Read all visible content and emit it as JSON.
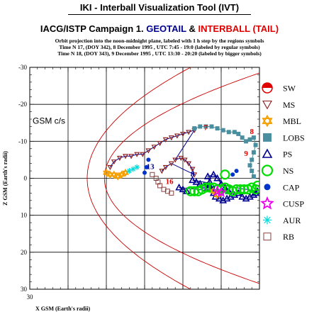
{
  "header": {
    "title": "IKI - Interball Visualization Tool (IVT)",
    "campaign_prefix": "IACG/ISTP Campaign 1.",
    "campaign_sc1": "GEOTAIL",
    "campaign_amp": "&",
    "campaign_sc2": "INTERBALL (TAIL)",
    "info_line1": "Orbit projection into the noon-midnight plane, labeled with 1 h step by the regions symbols",
    "info_line2": "Time N 17, (DOY 342), 8 December 1995 ,  UTC 7:45 - 19:0 (labeled by regular symbols)",
    "info_line3": "Time N 18, (DOY 343), 9 December 1995 ,  UTC 13:30 - 20:20 (labeled by bigger symbols)"
  },
  "colors": {
    "geotail": "#000090",
    "interball": "#e00000",
    "boundary": "#cc0000",
    "grid": "#000000",
    "lobs": "#4a8fa0",
    "ms": "#8b1a1a",
    "mbl": "#f5a000",
    "ns": "#00dd00",
    "cap": "#0033cc",
    "cusp": "#ee00ee",
    "aur": "#00dddd",
    "rb": "#8b4040",
    "sw": "#e00000"
  },
  "chart_data": {
    "type": "scatter",
    "frame_label": "GSM c/s",
    "xlabel": "X GSM (Earth's radii)",
    "ylabel": "Z GSM (Earth's radii)",
    "xlim": [
      30,
      -30
    ],
    "ylim": [
      -30,
      30
    ],
    "x_ticks": [
      "30",
      "20",
      "10",
      "0",
      "-10",
      "-20",
      "-30"
    ],
    "y_ticks": [
      "-30",
      "-20",
      "-10",
      "0",
      "10",
      "20",
      "30"
    ],
    "grid": true,
    "legend_position": "right",
    "legend": [
      {
        "key": "sw",
        "label": "SW"
      },
      {
        "key": "ms",
        "label": "MS"
      },
      {
        "key": "mbl",
        "label": "MBL"
      },
      {
        "key": "lobs",
        "label": "LOBS"
      },
      {
        "key": "ps",
        "label": "PS"
      },
      {
        "key": "ns",
        "label": "NS"
      },
      {
        "key": "cap",
        "label": "CAP"
      },
      {
        "key": "cusp",
        "label": "CUSP"
      },
      {
        "key": "aur",
        "label": "AUR"
      },
      {
        "key": "rb",
        "label": "RB"
      }
    ],
    "hour_labels": [
      {
        "text": "7",
        "x": -16,
        "z": -13,
        "color": "#e00000"
      },
      {
        "text": "8",
        "x": -28,
        "z": -12,
        "color": "#e00000"
      },
      {
        "text": "9",
        "x": -26.5,
        "z": -6,
        "color": "#e00000"
      },
      {
        "text": "13",
        "x": -1.5,
        "z": -2.5,
        "color": "#000090"
      },
      {
        "text": "16",
        "x": -6.5,
        "z": 1.5,
        "color": "#e00000"
      },
      {
        "text": "8",
        "x": -12.5,
        "z": -0.5,
        "color": "#000090"
      },
      {
        "text": "7",
        "x": -18,
        "z": 3.5,
        "color": "#000090"
      }
    ],
    "series": [
      {
        "name": "MS",
        "region": "ms",
        "points": [
          [
            9,
            -3
          ],
          [
            8,
            -4.5
          ],
          [
            6.5,
            -5.5
          ],
          [
            5,
            -6
          ],
          [
            3.5,
            -6
          ],
          [
            2,
            -6.5
          ],
          [
            0.5,
            -6.5
          ],
          [
            -1,
            -7.5
          ],
          [
            -2.5,
            -8.5
          ],
          [
            -4,
            -9.5
          ],
          [
            -5.5,
            -10.5
          ],
          [
            -7,
            -11
          ],
          [
            -8.5,
            -11.5
          ],
          [
            -10,
            -12
          ],
          [
            -11.5,
            -12.5
          ],
          [
            -13,
            -13
          ],
          [
            -8,
            -5
          ],
          [
            -9.5,
            -5.5
          ],
          [
            -10.5,
            -5
          ],
          [
            -11.5,
            -4
          ],
          [
            -12.5,
            -2.5
          ],
          [
            -13,
            -1
          ],
          [
            -7,
            -4
          ],
          [
            -5.5,
            -3
          ],
          [
            -4.5,
            -2
          ]
        ]
      },
      {
        "name": "LOBS",
        "region": "lobs",
        "points": [
          [
            -13,
            -13.5
          ],
          [
            -14.5,
            -14
          ],
          [
            -16,
            -14
          ],
          [
            -17.5,
            -14
          ],
          [
            -19,
            -13.5
          ],
          [
            -20.5,
            -13
          ],
          [
            -22,
            -12.5
          ],
          [
            -23.5,
            -12.5
          ],
          [
            -24.5,
            -12
          ],
          [
            -25.5,
            -11
          ],
          [
            -26.5,
            -10
          ],
          [
            -27.5,
            -10.5
          ],
          [
            -28.5,
            -11
          ],
          [
            -29,
            -9
          ],
          [
            -28.5,
            -7
          ],
          [
            -28,
            -5
          ],
          [
            -27.5,
            -3.5
          ],
          [
            -28,
            -2
          ],
          [
            -28.5,
            -0.5
          ]
        ]
      },
      {
        "name": "PS",
        "region": "ps",
        "points": [
          [
            -17,
            2
          ],
          [
            -17.5,
            3
          ],
          [
            -18,
            4
          ],
          [
            -18.5,
            5
          ],
          [
            -19.5,
            5.5
          ],
          [
            -20.5,
            6
          ],
          [
            -21.5,
            5.5
          ],
          [
            -22.5,
            5
          ],
          [
            -23.5,
            4.5
          ],
          [
            -24.5,
            4
          ],
          [
            -25.5,
            5
          ],
          [
            -26.5,
            5.5
          ],
          [
            -27.5,
            5
          ],
          [
            -28.5,
            4.5
          ],
          [
            -29,
            4
          ],
          [
            -29.5,
            3.5
          ],
          [
            -12.5,
            0.5
          ],
          [
            -13.5,
            1
          ],
          [
            -14.5,
            1.5
          ],
          [
            -15.5,
            2
          ],
          [
            -16.5,
            2.5
          ],
          [
            -17,
            1
          ],
          [
            -16.5,
            -0.5
          ],
          [
            -18,
            -1
          ],
          [
            -19,
            0
          ],
          [
            -20,
            1.5
          ],
          [
            -21,
            2.5
          ],
          [
            -22,
            3.5
          ],
          [
            -23,
            4
          ],
          [
            -9,
            2.5
          ],
          [
            -10,
            3
          ],
          [
            -11,
            3.5
          ]
        ]
      },
      {
        "name": "NS",
        "region": "ns",
        "points": [
          [
            -12,
            3.5
          ],
          [
            -13,
            3.5
          ],
          [
            -14,
            3.5
          ],
          [
            -15,
            3
          ],
          [
            -16,
            2.5
          ],
          [
            -17,
            2.5
          ],
          [
            -18,
            2.5
          ],
          [
            -19,
            3
          ],
          [
            -20,
            3
          ],
          [
            -21,
            2.5
          ],
          [
            -22,
            3
          ],
          [
            -23,
            3.5
          ],
          [
            -24,
            3
          ],
          [
            -25,
            3
          ],
          [
            -26,
            3
          ],
          [
            -27,
            3
          ],
          [
            -28,
            2.5
          ],
          [
            -29,
            3
          ],
          [
            -29.5,
            2
          ],
          [
            -21,
            -1
          ]
        ]
      },
      {
        "name": "MBL",
        "region": "mbl",
        "points": [
          [
            10,
            -1.5
          ],
          [
            9,
            -1
          ],
          [
            8,
            -1
          ],
          [
            7,
            -0.5
          ],
          [
            6,
            -1
          ],
          [
            5,
            -1.5
          ],
          [
            -19,
            4.5
          ],
          [
            -18,
            3.5
          ]
        ]
      },
      {
        "name": "CAP",
        "region": "cap",
        "points": [
          [
            -1,
            -5
          ],
          [
            -0.5,
            -3
          ],
          [
            0,
            -1.5
          ],
          [
            -24,
            -2
          ],
          [
            -23,
            -1
          ]
        ]
      },
      {
        "name": "AUR",
        "region": "aur",
        "points": [
          [
            4,
            -2
          ],
          [
            3,
            -2.5
          ],
          [
            2,
            -3
          ]
        ]
      },
      {
        "name": "RB",
        "region": "rb",
        "points": [
          [
            -2,
            -1
          ],
          [
            -3,
            0
          ],
          [
            -3.5,
            1
          ],
          [
            -4,
            2
          ],
          [
            -5,
            3
          ],
          [
            -6,
            3.5
          ],
          [
            -7,
            4
          ]
        ]
      },
      {
        "name": "CUSP",
        "region": "cusp",
        "points": [
          [
            -19,
            3.5
          ],
          [
            -20,
            3.8
          ]
        ]
      }
    ]
  }
}
